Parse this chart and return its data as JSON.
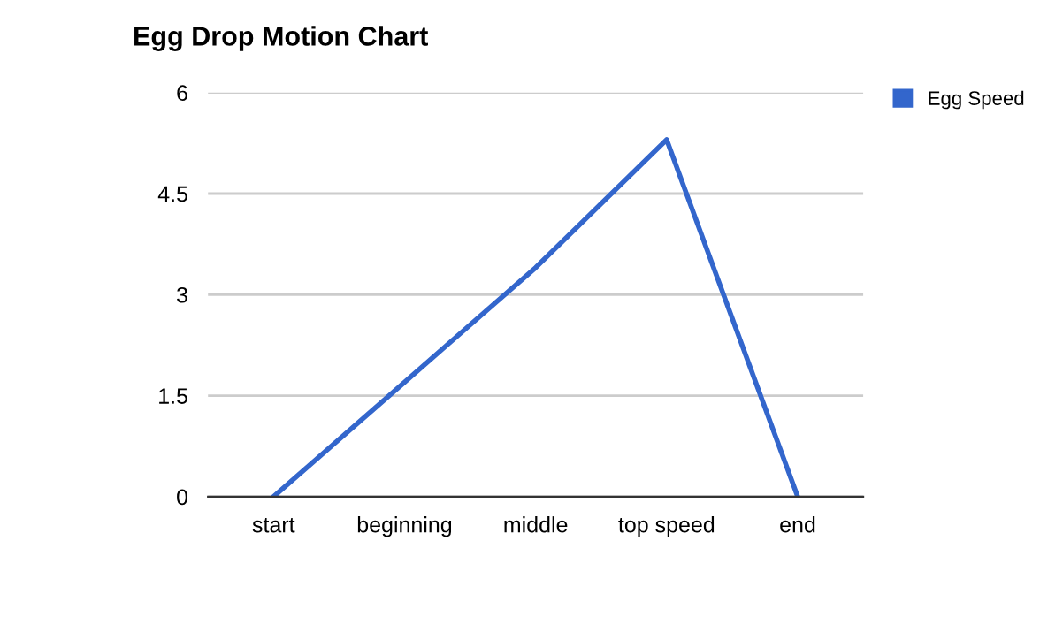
{
  "chart_data": {
    "type": "line",
    "title": "Egg Drop Motion Chart",
    "categories": [
      "start",
      "beginning",
      "middle",
      "top speed",
      "end"
    ],
    "series": [
      {
        "name": "Egg Speed",
        "color": "#3366cc",
        "values": [
          0,
          1.7,
          3.4,
          5.3,
          0
        ]
      }
    ],
    "ylim": [
      0,
      6
    ],
    "yticks": [
      0,
      1.5,
      3,
      4.5,
      6
    ],
    "grid": "y",
    "legend": "top right",
    "marker": "none",
    "line_style": "solid"
  }
}
